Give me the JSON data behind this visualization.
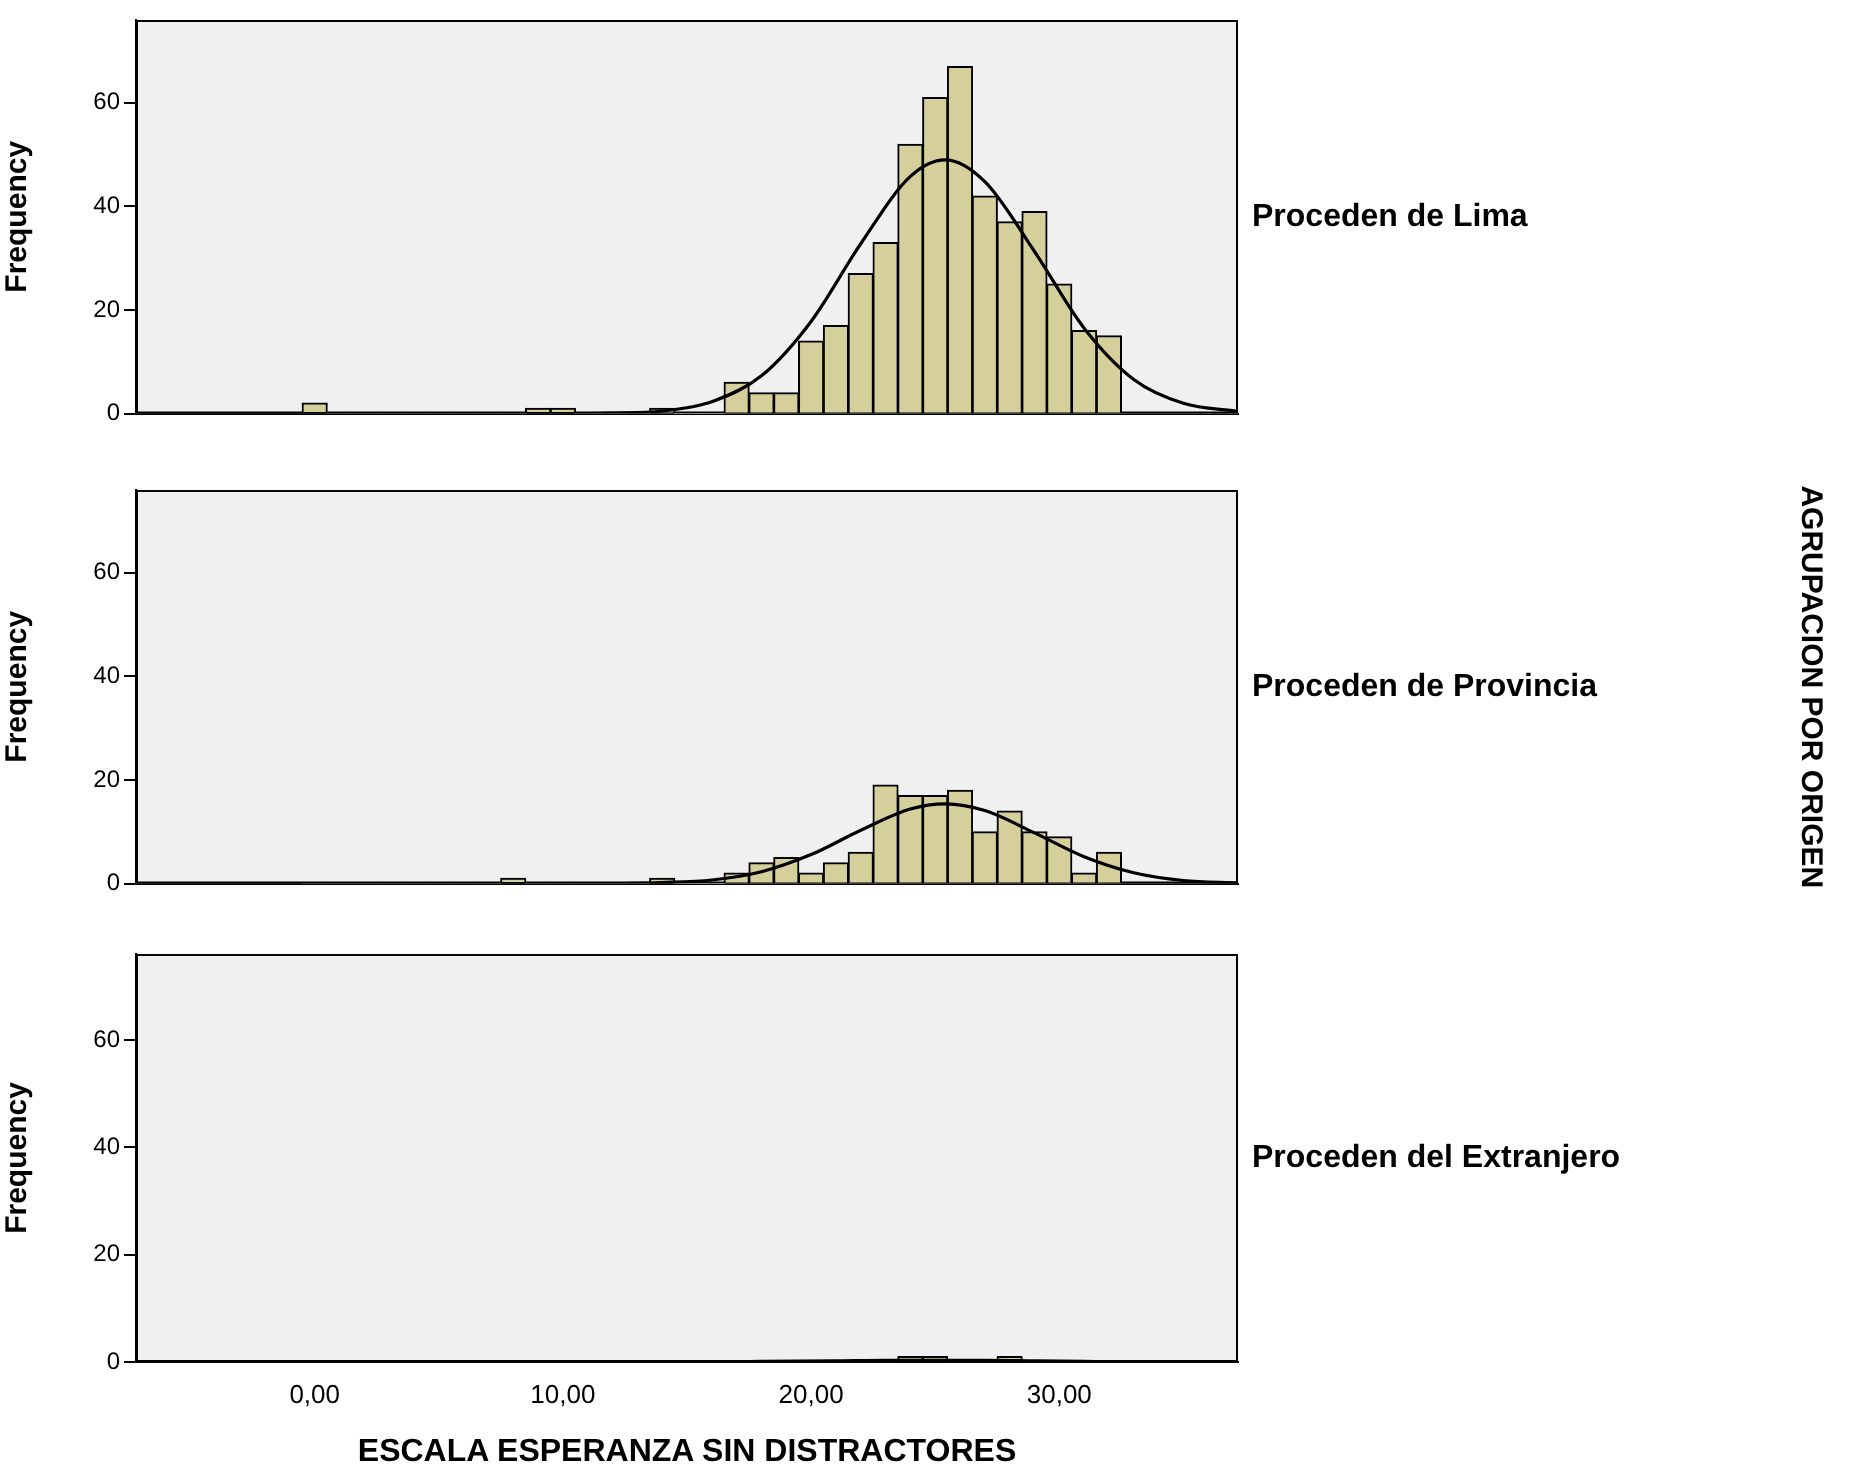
{
  "chart_data": [
    {
      "type": "histogram",
      "title": "Proceden de Lima",
      "ylabel": "Frequency",
      "color": "#d5d09b",
      "bins": [
        -0.5,
        0.5,
        1.5,
        2.5,
        3.5,
        4.5,
        5.5,
        6.5,
        7.5,
        8.5,
        9.5,
        10.5,
        11.5,
        12.5,
        13.5,
        14.5,
        15.5,
        16.5,
        17.5,
        18.5,
        19.5,
        20.5,
        21.5,
        22.5,
        23.5,
        24.5,
        25.5,
        26.5,
        27.5,
        28.5,
        29.5,
        30.5,
        31.5,
        32.5
      ],
      "values": [
        2,
        0,
        0,
        0,
        0,
        0,
        0,
        0,
        0,
        1,
        1,
        0,
        0,
        0,
        1,
        0,
        0,
        6,
        4,
        4,
        14,
        17,
        27,
        33,
        52,
        61,
        67,
        42,
        37,
        39,
        25,
        16,
        15
      ],
      "series": [
        {
          "type": "line",
          "color": "#000000",
          "x": [
            -7.2,
            10,
            12,
            14,
            16,
            18,
            20,
            22,
            24,
            25.4,
            27,
            29,
            31,
            33,
            35,
            37.2
          ],
          "values": [
            0,
            0,
            0.1,
            0.5,
            2.3,
            7.3,
            17.8,
            32.8,
            45.8,
            49,
            44.8,
            31.3,
            16.5,
            6.6,
            2,
            0.4
          ]
        }
      ],
      "xlim": [
        -7.2,
        37.2
      ],
      "ylim": [
        0,
        76
      ],
      "yticks": [
        0,
        20,
        40,
        60
      ],
      "tick_labels": "y"
    },
    {
      "type": "histogram",
      "title": "Proceden de Provincia",
      "ylabel": "Frequency",
      "color": "#d5d09b",
      "annotations": [
        "AGRUPACION POR ORIGEN"
      ],
      "bins": [
        -0.5,
        0.5,
        1.5,
        2.5,
        3.5,
        4.5,
        5.5,
        6.5,
        7.5,
        8.5,
        9.5,
        10.5,
        11.5,
        12.5,
        13.5,
        14.5,
        15.5,
        16.5,
        17.5,
        18.5,
        19.5,
        20.5,
        21.5,
        22.5,
        23.5,
        24.5,
        25.5,
        26.5,
        27.5,
        28.5,
        29.5,
        30.5,
        31.5,
        32.5
      ],
      "values": [
        0,
        0,
        0,
        0,
        0,
        0,
        0,
        0,
        1,
        0,
        0,
        0,
        0,
        0,
        1,
        0,
        0,
        2,
        4,
        5,
        2,
        4,
        6,
        19,
        17,
        17,
        18,
        10,
        14,
        10,
        9,
        2,
        6
      ],
      "series": [
        {
          "type": "line",
          "color": "#000000",
          "x": [
            -7.2,
            10,
            12,
            14,
            16,
            18,
            20,
            22,
            24,
            25.4,
            27,
            29,
            31,
            33,
            35,
            37.2
          ],
          "values": [
            0,
            0,
            0,
            0.2,
            0.7,
            2.3,
            5.6,
            10.3,
            14.4,
            15.4,
            14.1,
            9.8,
            5.2,
            2.1,
            0.6,
            0.1
          ]
        }
      ],
      "xlim": [
        -7.2,
        37.2
      ],
      "ylim": [
        0,
        76
      ],
      "yticks": [
        0,
        20,
        40,
        60
      ],
      "tick_labels": "y"
    },
    {
      "type": "histogram",
      "title": "Proceden del Extranjero",
      "ylabel": "Frequency",
      "xlabel": "ESCALA ESPERANZA SIN DISTRACTORES",
      "color": "#d5d09b",
      "bins": [
        -0.5,
        0.5,
        1.5,
        2.5,
        3.5,
        4.5,
        5.5,
        6.5,
        7.5,
        8.5,
        9.5,
        10.5,
        11.5,
        12.5,
        13.5,
        14.5,
        15.5,
        16.5,
        17.5,
        18.5,
        19.5,
        20.5,
        21.5,
        22.5,
        23.5,
        24.5,
        25.5,
        26.5,
        27.5,
        28.5,
        29.5,
        30.5,
        31.5,
        32.5
      ],
      "values": [
        0,
        0,
        0,
        0,
        0,
        0,
        0,
        0,
        0,
        0,
        0,
        0,
        0,
        0,
        0,
        0,
        0,
        0,
        0,
        0,
        0,
        0,
        0,
        0,
        1,
        1,
        0,
        0,
        1,
        0,
        0,
        0,
        0
      ],
      "series": [
        {
          "type": "line",
          "color": "#000000",
          "x": [
            -7.2,
            16,
            18,
            21,
            23,
            25.4,
            27,
            29,
            31,
            33,
            37.2
          ],
          "values": [
            0,
            0,
            0.1,
            0.2,
            0.3,
            0.3,
            0.3,
            0.2,
            0.1,
            0,
            0
          ]
        }
      ],
      "xlim": [
        -7.2,
        37.2
      ],
      "ylim": [
        0,
        76
      ],
      "yticks": [
        0,
        20,
        40,
        60
      ],
      "xticks": [
        {
          "value": 0,
          "label": "0,00"
        },
        {
          "value": 10,
          "label": "10,00"
        },
        {
          "value": 20,
          "label": "20,00"
        },
        {
          "value": 30,
          "label": "30,00"
        }
      ]
    }
  ]
}
